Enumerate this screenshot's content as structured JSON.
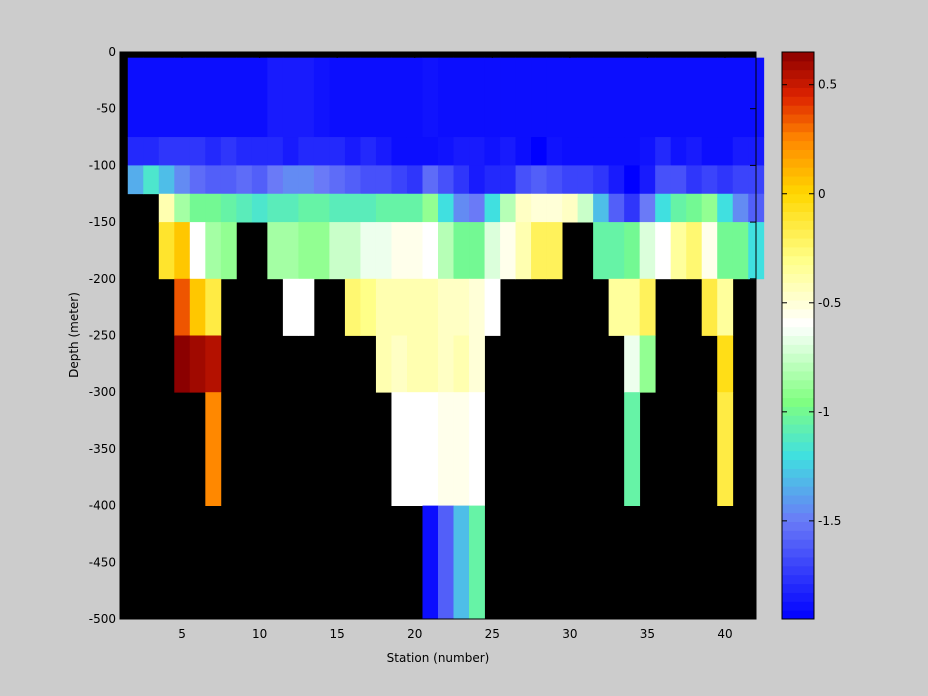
{
  "chart_data": {
    "type": "heatmap",
    "title": "",
    "xlabel": "Station (number)",
    "ylabel": "Depth (meter)",
    "xlim": [
      1,
      42
    ],
    "ylim": [
      -500,
      0
    ],
    "x_ticks": [
      5,
      10,
      15,
      20,
      25,
      30,
      35,
      40
    ],
    "y_ticks": [
      0,
      -50,
      -100,
      -150,
      -200,
      -250,
      -300,
      -350,
      -400,
      -450,
      -500
    ],
    "stations": [
      2,
      3,
      4,
      5,
      6,
      7,
      8,
      9,
      10,
      11,
      12,
      13,
      14,
      15,
      16,
      17,
      18,
      19,
      20,
      21,
      22,
      23,
      24,
      25,
      26,
      27,
      28,
      29,
      30,
      31,
      32,
      33,
      34,
      35,
      36,
      37,
      38,
      39,
      40,
      41,
      42
    ],
    "depth_bins": [
      {
        "top": -5,
        "bottom": -75
      },
      {
        "top": -75,
        "bottom": -100
      },
      {
        "top": -100,
        "bottom": -125
      },
      {
        "top": -125,
        "bottom": -150
      },
      {
        "top": -150,
        "bottom": -200
      },
      {
        "top": -200,
        "bottom": -250
      },
      {
        "top": -250,
        "bottom": -300
      },
      {
        "top": -300,
        "bottom": -400
      },
      {
        "top": -400,
        "bottom": -500
      }
    ],
    "values": [
      [
        -1.9,
        -1.9,
        -1.9,
        -1.9,
        -1.9,
        -1.9,
        -1.9,
        -1.9,
        -1.9,
        -1.85,
        -1.85,
        -1.85,
        -1.88,
        -1.9,
        -1.9,
        -1.9,
        -1.9,
        -1.9,
        -1.9,
        -1.88,
        -1.9,
        -1.9,
        -1.9,
        -1.9,
        -1.9,
        -1.9,
        -1.9,
        -1.9,
        -1.9,
        -1.9,
        -1.9,
        -1.9,
        -1.9,
        -1.9,
        -1.9,
        -1.9,
        -1.9,
        -1.9,
        -1.9,
        -1.9,
        -1.9
      ],
      [
        -1.8,
        -1.8,
        -1.75,
        -1.75,
        -1.75,
        -1.8,
        -1.75,
        -1.8,
        -1.8,
        -1.8,
        -1.85,
        -1.8,
        -1.8,
        -1.8,
        -1.85,
        -1.8,
        -1.85,
        -1.9,
        -1.9,
        -1.9,
        -1.88,
        -1.85,
        -1.85,
        -1.88,
        -1.85,
        -1.9,
        -1.95,
        -1.88,
        -1.9,
        -1.9,
        -1.9,
        -1.9,
        -1.9,
        -1.88,
        -1.8,
        -1.88,
        -1.85,
        -1.9,
        -1.9,
        -1.85,
        -1.85
      ],
      [
        -1.35,
        -1.15,
        -1.3,
        -1.45,
        -1.55,
        -1.6,
        -1.6,
        -1.55,
        -1.6,
        -1.5,
        -1.45,
        -1.45,
        -1.5,
        -1.55,
        -1.6,
        -1.65,
        -1.65,
        -1.7,
        -1.75,
        -1.55,
        -1.65,
        -1.75,
        -1.85,
        -1.8,
        -1.8,
        -1.65,
        -1.6,
        -1.65,
        -1.7,
        -1.7,
        -1.75,
        -1.85,
        -1.95,
        -1.85,
        -1.65,
        -1.65,
        -1.75,
        -1.7,
        -1.75,
        -1.7,
        -1.7
      ],
      [
        null,
        null,
        -0.4,
        -0.85,
        -1.0,
        -1.0,
        -1.05,
        -1.1,
        -1.15,
        -1.1,
        -1.1,
        -1.05,
        -1.05,
        -1.1,
        -1.1,
        -1.1,
        -1.05,
        -1.05,
        -1.05,
        -0.9,
        -1.2,
        -1.45,
        -1.5,
        -1.2,
        -0.8,
        -0.45,
        -0.5,
        -0.5,
        -0.45,
        -0.75,
        -1.3,
        -1.6,
        -1.75,
        -1.5,
        -1.2,
        -1.05,
        -1.0,
        -0.9,
        -1.2,
        -1.45,
        -1.6
      ],
      [
        null,
        null,
        -0.1,
        0.05,
        -0.6,
        -0.85,
        -0.9,
        null,
        null,
        -0.85,
        -0.85,
        -0.9,
        -0.9,
        -0.75,
        -0.75,
        -0.65,
        -0.65,
        -0.55,
        -0.55,
        -0.6,
        -0.8,
        -1.0,
        -1.0,
        -0.7,
        -0.55,
        -0.4,
        -0.2,
        -0.2,
        null,
        null,
        -1.05,
        -1.05,
        -1.0,
        -0.7,
        -0.6,
        -0.35,
        -0.25,
        -0.55,
        -1.0,
        -1.0,
        -1.2
      ],
      [
        null,
        null,
        null,
        0.35,
        0.05,
        -0.15,
        null,
        null,
        null,
        null,
        -0.6,
        -0.6,
        null,
        null,
        -0.25,
        -0.3,
        -0.4,
        -0.4,
        -0.4,
        -0.4,
        -0.45,
        -0.45,
        -0.5,
        -0.6,
        null,
        null,
        null,
        null,
        null,
        null,
        null,
        -0.35,
        -0.35,
        -0.2,
        null,
        null,
        null,
        -0.15,
        -0.35,
        null,
        null
      ],
      [
        null,
        null,
        null,
        0.65,
        0.6,
        0.55,
        null,
        null,
        null,
        null,
        null,
        null,
        null,
        null,
        null,
        null,
        -0.4,
        -0.45,
        -0.4,
        -0.4,
        -0.45,
        -0.4,
        -0.5,
        null,
        null,
        null,
        null,
        null,
        null,
        null,
        null,
        null,
        -0.65,
        -0.9,
        null,
        null,
        null,
        null,
        -0.05,
        null,
        null
      ],
      [
        null,
        null,
        null,
        null,
        null,
        0.25,
        null,
        null,
        null,
        null,
        null,
        null,
        null,
        null,
        null,
        null,
        null,
        -0.6,
        -0.6,
        -0.6,
        -0.55,
        -0.55,
        -0.6,
        null,
        null,
        null,
        null,
        null,
        null,
        null,
        null,
        null,
        -1.05,
        null,
        null,
        null,
        null,
        null,
        -0.15,
        null,
        null
      ],
      [
        null,
        null,
        null,
        null,
        null,
        null,
        null,
        null,
        null,
        null,
        null,
        null,
        null,
        null,
        null,
        null,
        null,
        null,
        null,
        -1.9,
        -1.6,
        -1.3,
        -1.05,
        null,
        null,
        null,
        null,
        null,
        null,
        null,
        null,
        null,
        null,
        null,
        null,
        null,
        null,
        null,
        null,
        null,
        null
      ]
    ],
    "missing_color": "#000000",
    "colorbar": {
      "range": [
        -1.95,
        0.65
      ],
      "ticks": [
        0.5,
        0,
        -0.5,
        -1,
        -1.5
      ],
      "tick_labels": [
        "0.5",
        "0",
        "-0.5",
        "-1",
        "-1.5"
      ],
      "colormap_stops": [
        {
          "v": -1.95,
          "c": "#0000ff"
        },
        {
          "v": -1.5,
          "c": "#6a7af7"
        },
        {
          "v": -1.2,
          "c": "#40e0e0"
        },
        {
          "v": -0.95,
          "c": "#80ff80"
        },
        {
          "v": -0.6,
          "c": "#ffffff"
        },
        {
          "v": -0.3,
          "c": "#ffff88"
        },
        {
          "v": 0.0,
          "c": "#ffd700"
        },
        {
          "v": 0.25,
          "c": "#ff8800"
        },
        {
          "v": 0.45,
          "c": "#dd2200"
        },
        {
          "v": 0.65,
          "c": "#8b0000"
        }
      ]
    }
  }
}
